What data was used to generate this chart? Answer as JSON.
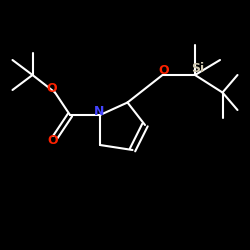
{
  "bg_color": "#000000",
  "bond_color": "#ffffff",
  "N_color": "#4444ff",
  "O_color": "#ff2200",
  "Si_color": "#d0c8b0",
  "text_color": "#ffffff",
  "N_label": "N",
  "O_label": "O",
  "Si_label": "Si",
  "bond_lw": 1.5,
  "figsize": [
    2.5,
    2.5
  ],
  "dpi": 100
}
